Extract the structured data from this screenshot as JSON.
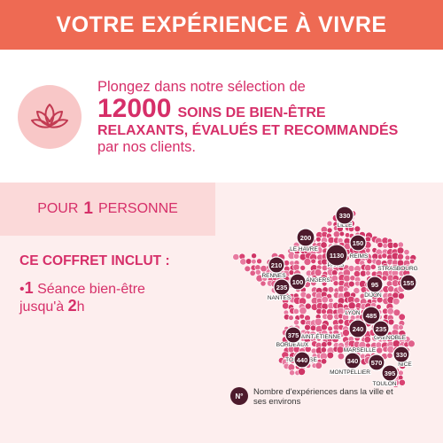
{
  "header": {
    "title": "VOTRE EXPÉRIENCE À VIVRE"
  },
  "intro": {
    "icon": "lotus-icon",
    "line1": "Plongez dans notre sélection de",
    "number": "12000",
    "line2_rest": "SOINS DE BIEN-ÊTRE",
    "line3": "RELAXANTS, ÉVALUÉS ET RECOMMANDÉS",
    "line4": "par nos clients."
  },
  "persons": {
    "prefix": "POUR",
    "number": "1",
    "suffix": "PERSONNE"
  },
  "includes": {
    "title": "CE COFFRET INCLUT :",
    "item_number": "1",
    "item_text": "Séance bien-être",
    "item_line2_prefix": "jusqu'à",
    "item_line2_number": "2",
    "item_line2_suffix": "h"
  },
  "map": {
    "badges": [
      {
        "value": "330"
      },
      {
        "value": "200"
      },
      {
        "value": "150"
      },
      {
        "value": "210"
      },
      {
        "value": "1130"
      },
      {
        "value": "155"
      },
      {
        "value": "235"
      },
      {
        "value": "100"
      },
      {
        "value": "95"
      },
      {
        "value": "485"
      },
      {
        "value": "240"
      },
      {
        "value": "235"
      },
      {
        "value": "375"
      },
      {
        "value": "440"
      },
      {
        "value": "340"
      },
      {
        "value": "570"
      },
      {
        "value": "330"
      },
      {
        "value": "395"
      }
    ],
    "cities": [
      {
        "name": "LILLE"
      },
      {
        "name": "LE HAVRE"
      },
      {
        "name": "REIMS"
      },
      {
        "name": "RENNES"
      },
      {
        "name": "PARIS"
      },
      {
        "name": "STRASBOURG"
      },
      {
        "name": "NANTES"
      },
      {
        "name": "ANGERS"
      },
      {
        "name": "DIJON"
      },
      {
        "name": "LYON"
      },
      {
        "name": "SAINT-ÉTIENNE"
      },
      {
        "name": "GRENOBLE"
      },
      {
        "name": "BORDEAUX"
      },
      {
        "name": "TOULOUSE"
      },
      {
        "name": "MONTPELLIER"
      },
      {
        "name": "MARSEILLE"
      },
      {
        "name": "NICE"
      },
      {
        "name": "TOULON"
      }
    ]
  },
  "legend": {
    "badge": "N°",
    "text": "Nombre d'expériences dans la ville et ses environs"
  },
  "colors": {
    "header": "#ee6a53",
    "accent": "#d62f69",
    "badge": "#4d1a2c",
    "dot": "#d94272",
    "panel": "#fdeeee"
  }
}
